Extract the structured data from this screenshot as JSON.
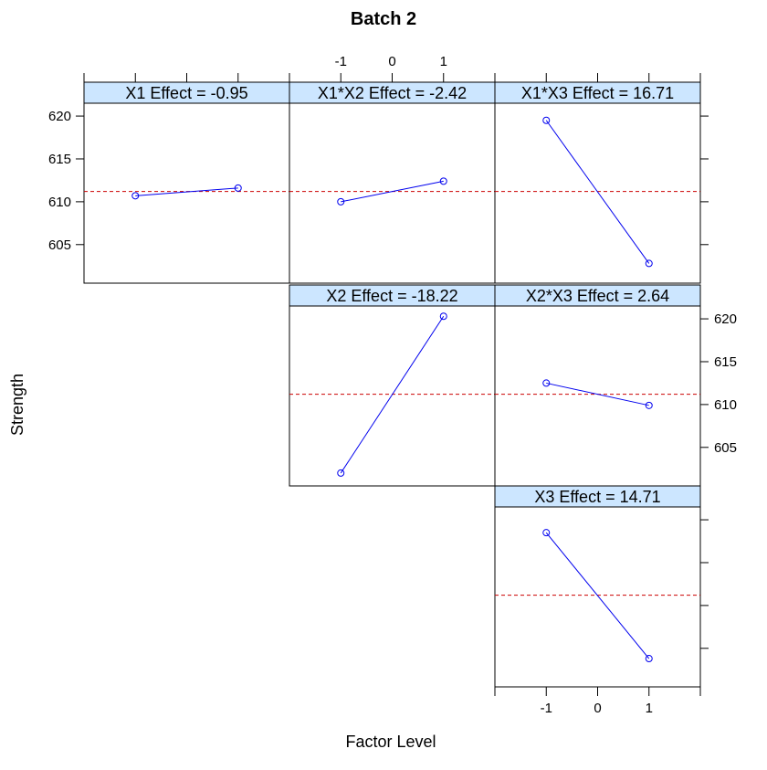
{
  "chart_data": {
    "type": "line",
    "title": "Batch 2",
    "xlabel": "Factor Level",
    "ylabel": "Strength",
    "x_ticks": [
      "-1",
      "0",
      "1"
    ],
    "y_ticks": [
      "605",
      "610",
      "615",
      "620"
    ],
    "xlim": [
      -2,
      2
    ],
    "ylim": [
      600.5,
      621.5
    ],
    "reference_line": {
      "value": 611.2,
      "style": "dashed",
      "color": "#cc0000"
    },
    "colors": {
      "series": "#0000ee",
      "strip_fill": "#cce6ff",
      "reference": "#cc0000",
      "frame": "#000000"
    },
    "panels": [
      {
        "label": "X1 Effect = -0.95",
        "row": 0,
        "col": 0,
        "x": [
          -1,
          1
        ],
        "y": [
          610.7,
          611.6
        ]
      },
      {
        "label": "X1*X2 Effect = -2.42",
        "row": 0,
        "col": 1,
        "x": [
          -1,
          1
        ],
        "y": [
          610.0,
          612.4
        ]
      },
      {
        "label": "X1*X3 Effect = 16.71",
        "row": 0,
        "col": 2,
        "x": [
          -1,
          1
        ],
        "y": [
          619.5,
          602.8
        ]
      },
      {
        "label": "X2 Effect = -18.22",
        "row": 1,
        "col": 1,
        "x": [
          -1,
          1
        ],
        "y": [
          602.0,
          620.3
        ]
      },
      {
        "label": "X2*X3 Effect = 2.64",
        "row": 1,
        "col": 2,
        "x": [
          -1,
          1
        ],
        "y": [
          612.5,
          609.9
        ]
      },
      {
        "label": "X3 Effect = 14.71",
        "row": 2,
        "col": 2,
        "x": [
          -1,
          1
        ],
        "y": [
          618.5,
          603.8
        ]
      }
    ]
  }
}
